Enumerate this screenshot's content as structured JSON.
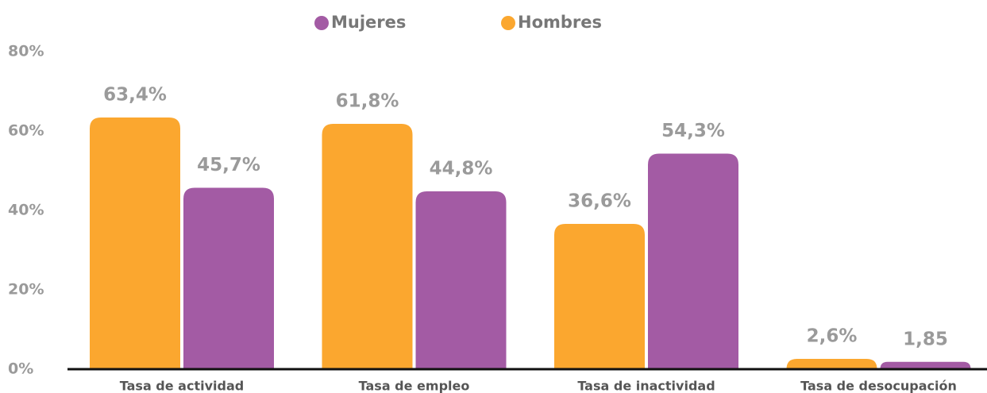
{
  "chart_data": {
    "type": "bar",
    "categories": [
      "Tasa de actividad",
      "Tasa de empleo",
      "Tasa de inactividad",
      "Tasa de desocupación"
    ],
    "series": [
      {
        "name": "Mujeres",
        "color": "#a35ba4",
        "values": [
          45.7,
          44.8,
          54.3,
          1.85
        ],
        "value_labels": [
          "45,7%",
          "44,8%",
          "54,3%",
          "1,85"
        ]
      },
      {
        "name": "Hombres",
        "color": "#fba72f",
        "values": [
          63.4,
          61.8,
          36.6,
          2.6
        ],
        "value_labels": [
          "63,4%",
          "61,8%",
          "36,6%",
          "2,6%"
        ]
      }
    ],
    "ylim": [
      0,
      80
    ],
    "yticks": [
      {
        "value": 0,
        "label": "0%"
      },
      {
        "value": 20,
        "label": "20%"
      },
      {
        "value": 40,
        "label": "40%"
      },
      {
        "value": 60,
        "label": "60%"
      },
      {
        "value": 80,
        "label": "80%"
      }
    ],
    "grid": false
  }
}
